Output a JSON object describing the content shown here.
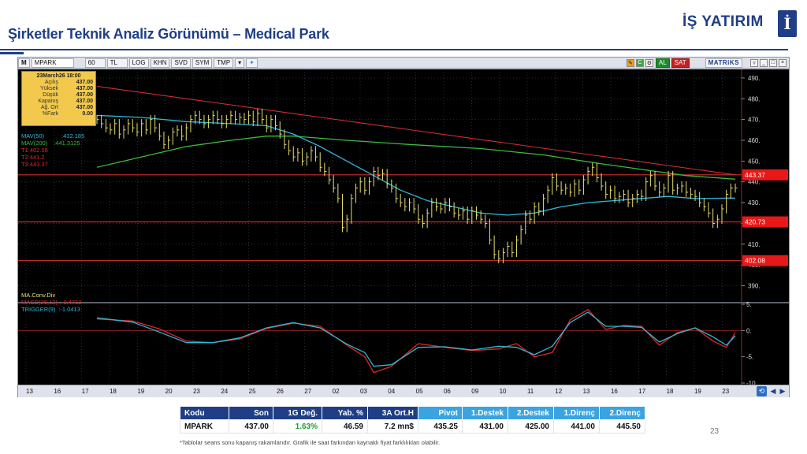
{
  "slide": {
    "title": "Şirketler Teknik Analiz Görünümü – Medical Park",
    "logo_text": "İŞ YATIRIM",
    "logo_mark": "İ",
    "page_number": "23",
    "footnote": "*Tablolar seans sonu kapanış rakamlarıdır. Grafik ile saat farkından kaynaklı fiyat farklılıkları olabilir."
  },
  "toolbar": {
    "m_label": "M",
    "symbol": "MPARK",
    "period": "60",
    "currency": "TL",
    "buttons": [
      "LOG",
      "KHN",
      "SVD",
      "SYM",
      "TMP"
    ],
    "al_label": "AL",
    "sat_label": "SAT",
    "brand": "MATRiKS"
  },
  "info_box": {
    "title": "23March26 18:00",
    "rows": [
      {
        "k": "Açılış",
        "v": "437.00"
      },
      {
        "k": "Yüksek",
        "v": "437.00"
      },
      {
        "k": "Düşük",
        "v": "437.00"
      },
      {
        "k": "Kapanış",
        "v": "437.00"
      },
      {
        "k": "Ağ. Ort",
        "v": "437.00"
      },
      {
        "k": "%Fark",
        "v": "0.00"
      }
    ]
  },
  "legend": {
    "mav50_label": "MAV(50)",
    "mav50_value": ":432.185",
    "mav200_label": "MAV(200)",
    "mav200_value": ":441.3125",
    "t1": "T1:402.08",
    "t2": "T2:441.2",
    "t3": "T3:443.37",
    "macd_title": "MA.Conv.Div",
    "macd_label": "MACD(26,12)",
    "macd_value": ":-0.4713",
    "trigger_label": "TRIGGER(9)",
    "trigger_value": ":-1.0413"
  },
  "colors": {
    "mav50": "#2fb8d8",
    "mav200": "#3dbb3d",
    "trend": "#d23030",
    "hline": "#d23030",
    "price": "#e8e070",
    "macd": "#e02828",
    "trigger": "#2fb8d8",
    "label_bg": "#e81818"
  },
  "chart_data": {
    "type": "line",
    "title": "",
    "symbol": "MPARK",
    "x_labels": [
      "13",
      "16",
      "17",
      "18",
      "19",
      "20",
      "23",
      "24",
      "25",
      "26",
      "27",
      "02",
      "03",
      "04",
      "05",
      "06",
      "09",
      "10",
      "11",
      "12",
      "13",
      "16",
      "17",
      "18",
      "19",
      "23"
    ],
    "price_axis": {
      "ylim": [
        383,
        493
      ],
      "ticks": [
        390,
        400,
        410,
        420,
        430,
        440,
        450,
        460,
        470,
        480,
        490
      ]
    },
    "horizontal_levels": [
      {
        "value": 443.37,
        "label": "443.37"
      },
      {
        "value": 420.73,
        "label": "420.73"
      },
      {
        "value": 402.08,
        "label": "402.08"
      }
    ],
    "price_series": [
      [
        0,
        470
      ],
      [
        1,
        468
      ],
      [
        2,
        466
      ],
      [
        3,
        465
      ],
      [
        4,
        468
      ],
      [
        5,
        463
      ],
      [
        6,
        465
      ],
      [
        7,
        468
      ],
      [
        8,
        466
      ],
      [
        9,
        464
      ],
      [
        10,
        468
      ],
      [
        11,
        465
      ],
      [
        12,
        470
      ],
      [
        13,
        466
      ],
      [
        14,
        462
      ],
      [
        15,
        458
      ],
      [
        16,
        460
      ],
      [
        17,
        464
      ],
      [
        18,
        465
      ],
      [
        19,
        462
      ],
      [
        20,
        466
      ],
      [
        21,
        470
      ],
      [
        22,
        472
      ],
      [
        23,
        470
      ],
      [
        24,
        468
      ],
      [
        25,
        470
      ],
      [
        26,
        472
      ],
      [
        27,
        470
      ],
      [
        28,
        468
      ],
      [
        29,
        470
      ],
      [
        30,
        472
      ],
      [
        31,
        470
      ],
      [
        32,
        471
      ],
      [
        33,
        470
      ],
      [
        34,
        472
      ],
      [
        35,
        469
      ],
      [
        36,
        473
      ],
      [
        37,
        470
      ],
      [
        38,
        466
      ],
      [
        39,
        470
      ],
      [
        40,
        467
      ],
      [
        41,
        463
      ],
      [
        42,
        458
      ],
      [
        43,
        455
      ],
      [
        44,
        452
      ],
      [
        45,
        454
      ],
      [
        46,
        450
      ],
      [
        47,
        452
      ],
      [
        48,
        455
      ],
      [
        49,
        452
      ],
      [
        50,
        447
      ],
      [
        51,
        445
      ],
      [
        52,
        441
      ],
      [
        53,
        437
      ],
      [
        54,
        432
      ],
      [
        55,
        418
      ],
      [
        56,
        422
      ],
      [
        57,
        432
      ],
      [
        58,
        437
      ],
      [
        59,
        440
      ],
      [
        60,
        436
      ],
      [
        61,
        440
      ],
      [
        62,
        445
      ],
      [
        63,
        443
      ],
      [
        64,
        444
      ],
      [
        65,
        439
      ],
      [
        66,
        437
      ],
      [
        67,
        432
      ],
      [
        68,
        430
      ],
      [
        69,
        428
      ],
      [
        70,
        430
      ],
      [
        71,
        427
      ],
      [
        72,
        422
      ],
      [
        73,
        420
      ],
      [
        74,
        425
      ],
      [
        75,
        430
      ],
      [
        76,
        428
      ],
      [
        77,
        427
      ],
      [
        78,
        430
      ],
      [
        79,
        428
      ],
      [
        80,
        425
      ],
      [
        81,
        424
      ],
      [
        82,
        426
      ],
      [
        83,
        422
      ],
      [
        84,
        426
      ],
      [
        85,
        424
      ],
      [
        86,
        422
      ],
      [
        87,
        420
      ],
      [
        88,
        412
      ],
      [
        89,
        405
      ],
      [
        90,
        403
      ],
      [
        91,
        406
      ],
      [
        92,
        409
      ],
      [
        93,
        406
      ],
      [
        94,
        412
      ],
      [
        95,
        417
      ],
      [
        96,
        424
      ],
      [
        97,
        422
      ],
      [
        98,
        428
      ],
      [
        99,
        426
      ],
      [
        100,
        432
      ],
      [
        101,
        436
      ],
      [
        102,
        442
      ],
      [
        103,
        438
      ],
      [
        104,
        436
      ],
      [
        105,
        437
      ],
      [
        106,
        435
      ],
      [
        107,
        439
      ],
      [
        108,
        436
      ],
      [
        109,
        441
      ],
      [
        110,
        445
      ],
      [
        111,
        447
      ],
      [
        112,
        442
      ],
      [
        113,
        438
      ],
      [
        114,
        434
      ],
      [
        115,
        436
      ],
      [
        116,
        432
      ],
      [
        117,
        433
      ],
      [
        118,
        434
      ],
      [
        119,
        430
      ],
      [
        120,
        432
      ],
      [
        121,
        434
      ],
      [
        122,
        433
      ],
      [
        123,
        440
      ],
      [
        124,
        443
      ],
      [
        125,
        438
      ],
      [
        126,
        435
      ],
      [
        127,
        437
      ],
      [
        128,
        443
      ],
      [
        129,
        436
      ],
      [
        130,
        437
      ],
      [
        131,
        438
      ],
      [
        132,
        435
      ],
      [
        133,
        434
      ],
      [
        134,
        433
      ],
      [
        135,
        430
      ],
      [
        136,
        428
      ],
      [
        137,
        425
      ],
      [
        138,
        420
      ],
      [
        139,
        422
      ],
      [
        140,
        427
      ],
      [
        141,
        434
      ],
      [
        142,
        437
      ],
      [
        143,
        437
      ]
    ],
    "mav50_series": [
      [
        0,
        472
      ],
      [
        10,
        471
      ],
      [
        20,
        469
      ],
      [
        30,
        468
      ],
      [
        38,
        467
      ],
      [
        44,
        463
      ],
      [
        50,
        457
      ],
      [
        56,
        450
      ],
      [
        62,
        443
      ],
      [
        68,
        436
      ],
      [
        74,
        431
      ],
      [
        80,
        428
      ],
      [
        86,
        425
      ],
      [
        92,
        424
      ],
      [
        98,
        425
      ],
      [
        104,
        428
      ],
      [
        110,
        430
      ],
      [
        116,
        431
      ],
      [
        122,
        432
      ],
      [
        128,
        433
      ],
      [
        134,
        432
      ],
      [
        143,
        432.2
      ]
    ],
    "mav200_series": [
      [
        0,
        447
      ],
      [
        10,
        452
      ],
      [
        20,
        457
      ],
      [
        30,
        460
      ],
      [
        38,
        462
      ],
      [
        44,
        462
      ],
      [
        56,
        460
      ],
      [
        70,
        458
      ],
      [
        86,
        456
      ],
      [
        100,
        453
      ],
      [
        112,
        449
      ],
      [
        122,
        446
      ],
      [
        132,
        443
      ],
      [
        143,
        441.3
      ]
    ],
    "trend_line": [
      [
        0,
        486
      ],
      [
        143,
        443.37
      ]
    ],
    "macd_axis": {
      "ylim": [
        -10,
        5
      ],
      "ticks": [
        5,
        0,
        -5,
        -10
      ]
    },
    "macd_series": [
      [
        0,
        2.2
      ],
      [
        8,
        1.8
      ],
      [
        14,
        0.3
      ],
      [
        20,
        -2.0
      ],
      [
        26,
        -2.3
      ],
      [
        32,
        -1.6
      ],
      [
        38,
        0.4
      ],
      [
        44,
        1.4
      ],
      [
        50,
        0.8
      ],
      [
        56,
        -2.8
      ],
      [
        60,
        -5.0
      ],
      [
        62,
        -8.0
      ],
      [
        66,
        -6.8
      ],
      [
        72,
        -2.5
      ],
      [
        78,
        -3.2
      ],
      [
        84,
        -3.8
      ],
      [
        90,
        -3.5
      ],
      [
        94,
        -2.5
      ],
      [
        98,
        -5.0
      ],
      [
        102,
        -4.2
      ],
      [
        106,
        2.0
      ],
      [
        110,
        4.0
      ],
      [
        114,
        0.2
      ],
      [
        118,
        1.0
      ],
      [
        122,
        0.8
      ],
      [
        126,
        -2.8
      ],
      [
        130,
        -0.4
      ],
      [
        134,
        0.5
      ],
      [
        138,
        -2.0
      ],
      [
        141,
        -3.2
      ],
      [
        143,
        -0.4
      ]
    ],
    "trigger_series": [
      [
        0,
        2.4
      ],
      [
        8,
        1.6
      ],
      [
        14,
        -0.3
      ],
      [
        20,
        -2.3
      ],
      [
        26,
        -2.3
      ],
      [
        32,
        -1.4
      ],
      [
        38,
        0.5
      ],
      [
        44,
        1.5
      ],
      [
        50,
        0.5
      ],
      [
        56,
        -2.6
      ],
      [
        60,
        -4.2
      ],
      [
        62,
        -6.8
      ],
      [
        66,
        -6.5
      ],
      [
        72,
        -3.2
      ],
      [
        78,
        -3.1
      ],
      [
        84,
        -3.7
      ],
      [
        90,
        -3.0
      ],
      [
        94,
        -3.2
      ],
      [
        98,
        -4.6
      ],
      [
        102,
        -3.0
      ],
      [
        106,
        1.5
      ],
      [
        110,
        3.5
      ],
      [
        114,
        0.8
      ],
      [
        118,
        0.8
      ],
      [
        122,
        0.6
      ],
      [
        126,
        -2.2
      ],
      [
        130,
        -0.6
      ],
      [
        134,
        0.5
      ],
      [
        138,
        -1.2
      ],
      [
        141,
        -2.8
      ],
      [
        143,
        -1.0
      ]
    ]
  },
  "table": {
    "headers": [
      "Kodu",
      "Son",
      "1G Değ.",
      "Yab. %",
      "3A Ort.H",
      "Pivot",
      "1.Destek",
      "2.Destek",
      "1.Direnç",
      "2.Direnç"
    ],
    "row": [
      "MPARK",
      "437.00",
      "1.63%",
      "46.59",
      "7.2 mn$",
      "435.25",
      "431.00",
      "425.00",
      "441.00",
      "445.50"
    ]
  }
}
